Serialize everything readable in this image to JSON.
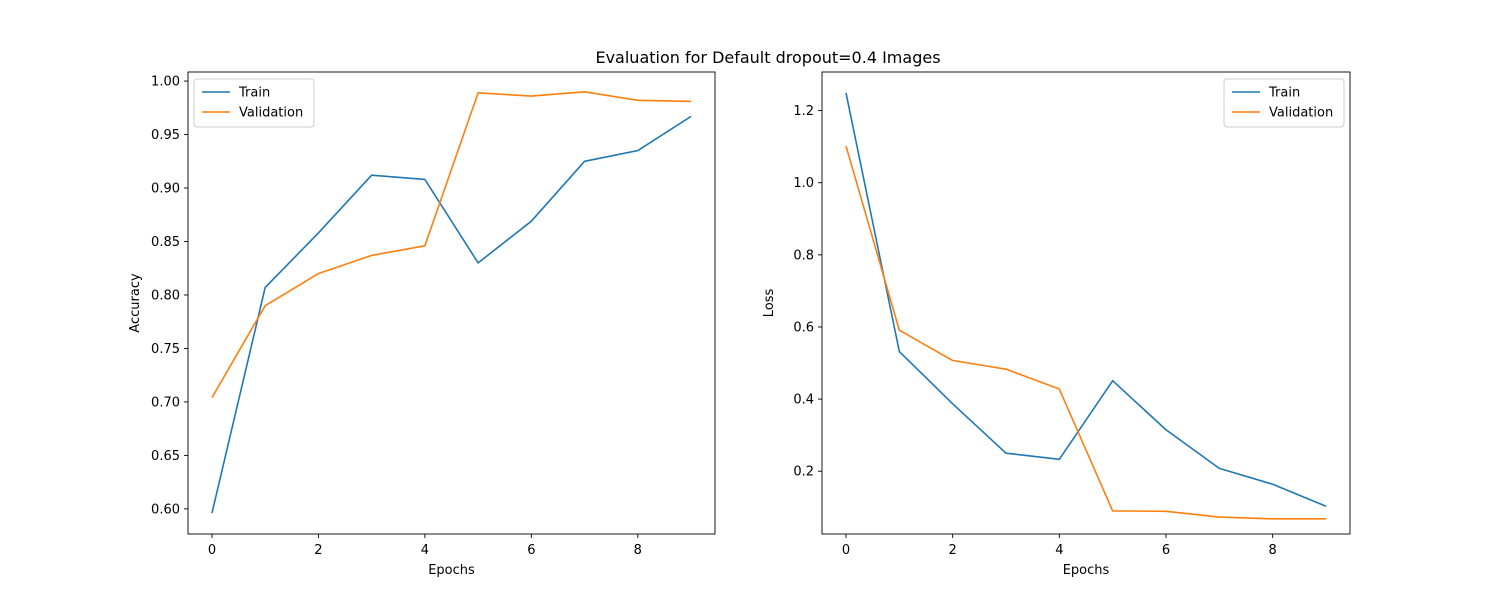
{
  "title": "Evaluation for Default dropout=0.4 Images",
  "chart_data": [
    {
      "type": "line",
      "xlabel": "Epochs",
      "ylabel": "Accuracy",
      "x": [
        0,
        1,
        2,
        3,
        4,
        5,
        6,
        7,
        8,
        9
      ],
      "xlim": [
        -0.45,
        9.45
      ],
      "ylim": [
        0.5765,
        1.0085
      ],
      "xticks": [
        0,
        2,
        4,
        6,
        8
      ],
      "yticks": [
        0.6,
        0.65,
        0.7,
        0.75,
        0.8,
        0.85,
        0.9,
        0.95,
        1.0
      ],
      "ytick_labels": [
        "0.60",
        "0.65",
        "0.70",
        "0.75",
        "0.80",
        "0.85",
        "0.90",
        "0.95",
        "1.00"
      ],
      "legend_position": "top-left",
      "grid": false,
      "series": [
        {
          "name": "Train",
          "color": "#1f77b4",
          "values": [
            0.596,
            0.807,
            0.858,
            0.912,
            0.908,
            0.83,
            0.869,
            0.925,
            0.935,
            0.967
          ]
        },
        {
          "name": "Validation",
          "color": "#ff7f0e",
          "values": [
            0.704,
            0.79,
            0.82,
            0.837,
            0.846,
            0.989,
            0.986,
            0.99,
            0.982,
            0.981
          ]
        }
      ]
    },
    {
      "type": "line",
      "xlabel": "Epochs",
      "ylabel": "Loss",
      "x": [
        0,
        1,
        2,
        3,
        4,
        5,
        6,
        7,
        8,
        9
      ],
      "xlim": [
        -0.45,
        9.45
      ],
      "ylim": [
        0.026,
        1.307
      ],
      "xticks": [
        0,
        2,
        4,
        6,
        8
      ],
      "yticks": [
        0.2,
        0.4,
        0.6,
        0.8,
        1.0,
        1.2
      ],
      "ytick_labels": [
        "0.2",
        "0.4",
        "0.6",
        "0.8",
        "1.0",
        "1.2"
      ],
      "legend_position": "top-right",
      "grid": false,
      "series": [
        {
          "name": "Train",
          "color": "#1f77b4",
          "values": [
            1.249,
            0.532,
            0.387,
            0.25,
            0.233,
            0.451,
            0.315,
            0.208,
            0.164,
            0.103
          ]
        },
        {
          "name": "Validation",
          "color": "#ff7f0e",
          "values": [
            1.102,
            0.591,
            0.507,
            0.483,
            0.428,
            0.09,
            0.089,
            0.073,
            0.068,
            0.068
          ]
        }
      ]
    }
  ]
}
